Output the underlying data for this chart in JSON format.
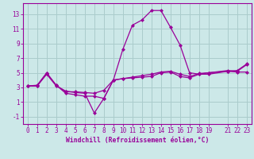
{
  "xlabel": "Windchill (Refroidissement éolien,°C)",
  "bg_color": "#cce8e8",
  "grid_color": "#aacccc",
  "line_color": "#990099",
  "xlim": [
    -0.5,
    23.5
  ],
  "ylim": [
    -2.0,
    14.5
  ],
  "xticks": [
    0,
    1,
    2,
    3,
    4,
    5,
    6,
    7,
    8,
    9,
    10,
    11,
    12,
    13,
    14,
    15,
    16,
    17,
    18,
    19,
    21,
    22,
    23
  ],
  "yticks": [
    -1,
    1,
    3,
    5,
    7,
    9,
    11,
    13
  ],
  "series1_x": [
    0,
    1,
    2,
    3,
    4,
    5,
    6,
    7,
    8,
    9,
    10,
    11,
    12,
    13,
    14,
    15,
    16,
    17,
    18,
    19,
    21,
    22,
    23
  ],
  "series1_y": [
    3.2,
    3.3,
    5.0,
    3.3,
    2.2,
    2.0,
    1.8,
    1.8,
    1.5,
    4.0,
    8.2,
    11.5,
    12.2,
    13.5,
    13.5,
    11.2,
    8.8,
    5.0,
    4.8,
    4.8,
    5.2,
    5.3,
    6.2
  ],
  "series2_x": [
    0,
    1,
    2,
    3,
    4,
    5,
    6,
    7,
    8,
    9,
    10,
    11,
    12,
    13,
    14,
    15,
    16,
    17,
    18,
    19,
    21,
    22,
    23
  ],
  "series2_y": [
    3.2,
    3.2,
    4.8,
    3.2,
    2.5,
    2.3,
    2.2,
    -0.5,
    1.5,
    4.0,
    4.2,
    4.3,
    4.4,
    4.5,
    5.0,
    5.1,
    4.5,
    4.3,
    4.8,
    5.0,
    5.2,
    5.1,
    5.1
  ],
  "series3_x": [
    0,
    1,
    2,
    3,
    4,
    5,
    6,
    7,
    8,
    9,
    10,
    11,
    12,
    13,
    14,
    15,
    16,
    17,
    18,
    19,
    21,
    22,
    23
  ],
  "series3_y": [
    3.2,
    3.2,
    4.9,
    3.3,
    2.4,
    2.4,
    2.3,
    2.2,
    2.6,
    4.0,
    4.2,
    4.4,
    4.6,
    4.8,
    5.1,
    5.2,
    4.8,
    4.5,
    4.9,
    5.0,
    5.3,
    5.2,
    6.1
  ],
  "tick_fontsize": 5.5,
  "label_fontsize": 5.8
}
